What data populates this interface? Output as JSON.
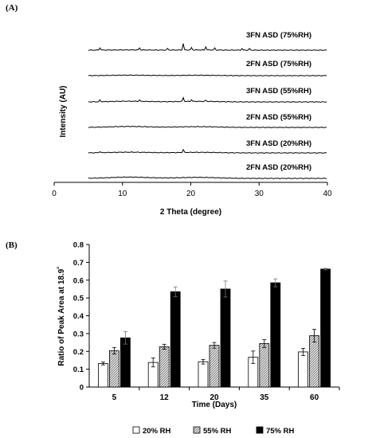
{
  "panel_a": {
    "label": "(A)"
  },
  "panel_b": {
    "label": "(B)"
  },
  "chart_data": [
    {
      "type": "line",
      "ylabel": "Intensity (AU)",
      "xlabel": "2 Theta (degree)",
      "xlim": [
        0,
        40
      ],
      "x_ticks": [
        "0",
        "10",
        "20",
        "30",
        "40"
      ],
      "series": [
        {
          "name": "3FN ASD (75%RH)",
          "peaks": [
            6.7,
            12.5,
            16.6,
            18.9,
            20.1,
            22.2,
            23.5,
            27.5,
            28.6
          ]
        },
        {
          "name": "2FN ASD (75%RH)",
          "peaks": []
        },
        {
          "name": "3FN ASD (55%RH)",
          "peaks": [
            6.7,
            12.5,
            18.9,
            20.1,
            22.2
          ]
        },
        {
          "name": "2FN ASD (55%RH)",
          "peaks": []
        },
        {
          "name": "3FN ASD (20%RH)",
          "peaks": [
            6.7,
            18.9
          ]
        },
        {
          "name": "2FN ASD (20%RH)",
          "peaks": []
        }
      ]
    },
    {
      "type": "bar",
      "ylabel": "Ratio of Peak Area at 18.9˚",
      "xlabel": "Time (Days)",
      "ylim": [
        0,
        0.8
      ],
      "y_ticks": [
        "0",
        "0.1",
        "0.2",
        "0.3",
        "0.4",
        "0.5",
        "0.6",
        "0.7",
        "0.8"
      ],
      "categories": [
        "5",
        "12",
        "20",
        "35",
        "60"
      ],
      "legend_position": "bottom",
      "series": [
        {
          "name": "20% RH",
          "fill": "white",
          "values": [
            0.132,
            0.138,
            0.142,
            0.167,
            0.197
          ],
          "errors": [
            0.008,
            0.025,
            0.013,
            0.035,
            0.02
          ]
        },
        {
          "name": "55% RH",
          "fill": "hatched",
          "values": [
            0.204,
            0.226,
            0.234,
            0.244,
            0.288
          ],
          "errors": [
            0.018,
            0.014,
            0.016,
            0.022,
            0.036
          ]
        },
        {
          "name": "75% RH",
          "fill": "black",
          "values": [
            0.276,
            0.535,
            0.55,
            0.585,
            0.662
          ],
          "errors": [
            0.035,
            0.027,
            0.045,
            0.022,
            0.004
          ]
        }
      ]
    }
  ]
}
